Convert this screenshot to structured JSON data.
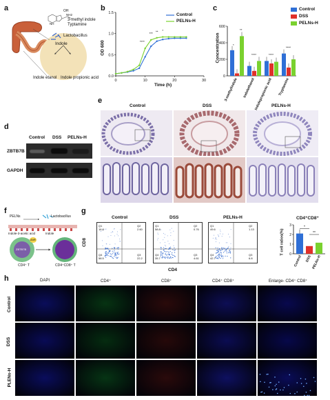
{
  "labels": {
    "a": "a",
    "b": "b",
    "c": "c",
    "d": "d",
    "e": "e",
    "f": "f",
    "g": "g",
    "h": "h"
  },
  "panel_a": {
    "texts": [
      "3-methyl indole",
      "Typtamine",
      "Lactobacillus",
      "Indole",
      "Indole etanol",
      "Indole propionic acid",
      "OH",
      "NH2",
      "NH"
    ]
  },
  "panel_b": {
    "ylabel": "OD 600",
    "xlabel": "Time (h)",
    "yticks": [
      "0.0",
      "0.5",
      "1.0",
      "1.5"
    ],
    "xticks": [
      "0",
      "10",
      "20",
      "30"
    ],
    "legend": [
      "Control",
      "PELNs-H"
    ],
    "sig": [
      "****",
      "***",
      "**",
      "*"
    ]
  },
  "panel_c": {
    "ylabel": "Concentration",
    "yticks": [
      "0",
      "200",
      "400",
      "600"
    ],
    "categories": [
      "3-methylindole",
      "Indolethanol",
      "Indolepropionic acid",
      "Tryptamine"
    ],
    "legend": [
      "Control",
      "DSS",
      "PELNs-H"
    ],
    "sig": [
      "**",
      "****",
      "****",
      "****",
      "*"
    ]
  },
  "panel_d": {
    "columns": [
      "Control",
      "DSS",
      "PELNs-H"
    ],
    "rows": [
      "ZBTB7B",
      "GAPDH"
    ]
  },
  "panel_e": {
    "columns": [
      "Control",
      "DSS",
      "PELNs-H"
    ]
  },
  "panel_f": {
    "texts": [
      "PELNs",
      "Lactobacillus",
      "Indole-3-acetic acid",
      "Indole",
      "AhR",
      "ZBTB7B",
      "CD4⁺ T",
      "CD4⁺CD8⁺ T"
    ]
  },
  "panel_g": {
    "columns": [
      "Control",
      "DSS",
      "PELNs-H"
    ],
    "ylabel": "CD8",
    "xlabel": "CD4",
    "quadrants": [
      {
        "q1": "Q1",
        "q1v": "16.8",
        "q2": "Q2",
        "q2v": "2.60",
        "q3": "Q3",
        "q3v": "22.2",
        "q4": "Q4",
        "q4v": "58.5"
      },
      {
        "q1": "Q1",
        "q1v": "58.8",
        "q2": "Q2",
        "q2v": "0.76",
        "q3": "Q3",
        "q3v": "4.61",
        "q4": "Q4",
        "q4v": "35.7"
      },
      {
        "q1": "Q1",
        "q1v": "49.6",
        "q2": "Q2",
        "q2v": "1.13",
        "q3": "Q3",
        "q3v": "6.8",
        "q4": "Q4",
        "q4v": "42.7"
      }
    ],
    "bar_title": "CD4⁺CD8⁺",
    "bar_ylabel": "T cell ratios(%)",
    "bar_categories": [
      "Control",
      "DSS",
      "PELNs-H"
    ],
    "bar_sig": [
      "*",
      "**"
    ],
    "bar_yticks": [
      "0",
      "1",
      "2",
      "3"
    ]
  },
  "panel_h": {
    "columns": [
      "DAPI",
      "CD4⁺",
      "CD8⁺",
      "CD4⁺ CD8⁺",
      "Enlarge- CD4⁺ CD8⁺"
    ],
    "rows": [
      "Control",
      "DSS",
      "PLENs-H"
    ]
  },
  "colors": {
    "control": "#2f6fd6",
    "dss": "#e0302a",
    "pelns": "#7ad12f"
  },
  "chart_data": [
    {
      "type": "line",
      "ylabel": "OD 600",
      "xlabel": "Time (h)",
      "ylim": [
        0,
        1.5
      ],
      "xlim": [
        0,
        30
      ],
      "x": [
        0,
        2,
        4,
        6,
        8,
        10,
        12,
        14,
        16,
        18,
        20,
        22,
        24
      ],
      "series": [
        {
          "name": "Control",
          "values": [
            0.05,
            0.07,
            0.09,
            0.12,
            0.18,
            0.45,
            0.7,
            0.82,
            0.86,
            0.88,
            0.89,
            0.89,
            0.89
          ]
        },
        {
          "name": "PELNs-H",
          "values": [
            0.05,
            0.07,
            0.1,
            0.15,
            0.25,
            0.65,
            0.85,
            0.9,
            0.92,
            0.92,
            0.92,
            0.92,
            0.92
          ]
        }
      ]
    },
    {
      "type": "bar",
      "ylabel": "Concentration",
      "ylim": [
        0,
        600
      ],
      "categories": [
        "3-methylindole",
        "Indolethanol",
        "Indolepropionic acid",
        "Tryptamine"
      ],
      "series": [
        {
          "name": "Control",
          "values": [
            310,
            120,
            180,
            270
          ]
        },
        {
          "name": "DSS",
          "values": [
            30,
            60,
            150,
            100
          ]
        },
        {
          "name": "PELNs-H",
          "values": [
            480,
            180,
            170,
            200
          ]
        }
      ]
    },
    {
      "type": "bar",
      "title": "CD4⁺CD8⁺",
      "ylabel": "T cell ratios(%)",
      "ylim": [
        0,
        3
      ],
      "categories": [
        "Control",
        "DSS",
        "PELNs-H"
      ],
      "values": [
        2.1,
        0.8,
        1.15
      ]
    }
  ]
}
